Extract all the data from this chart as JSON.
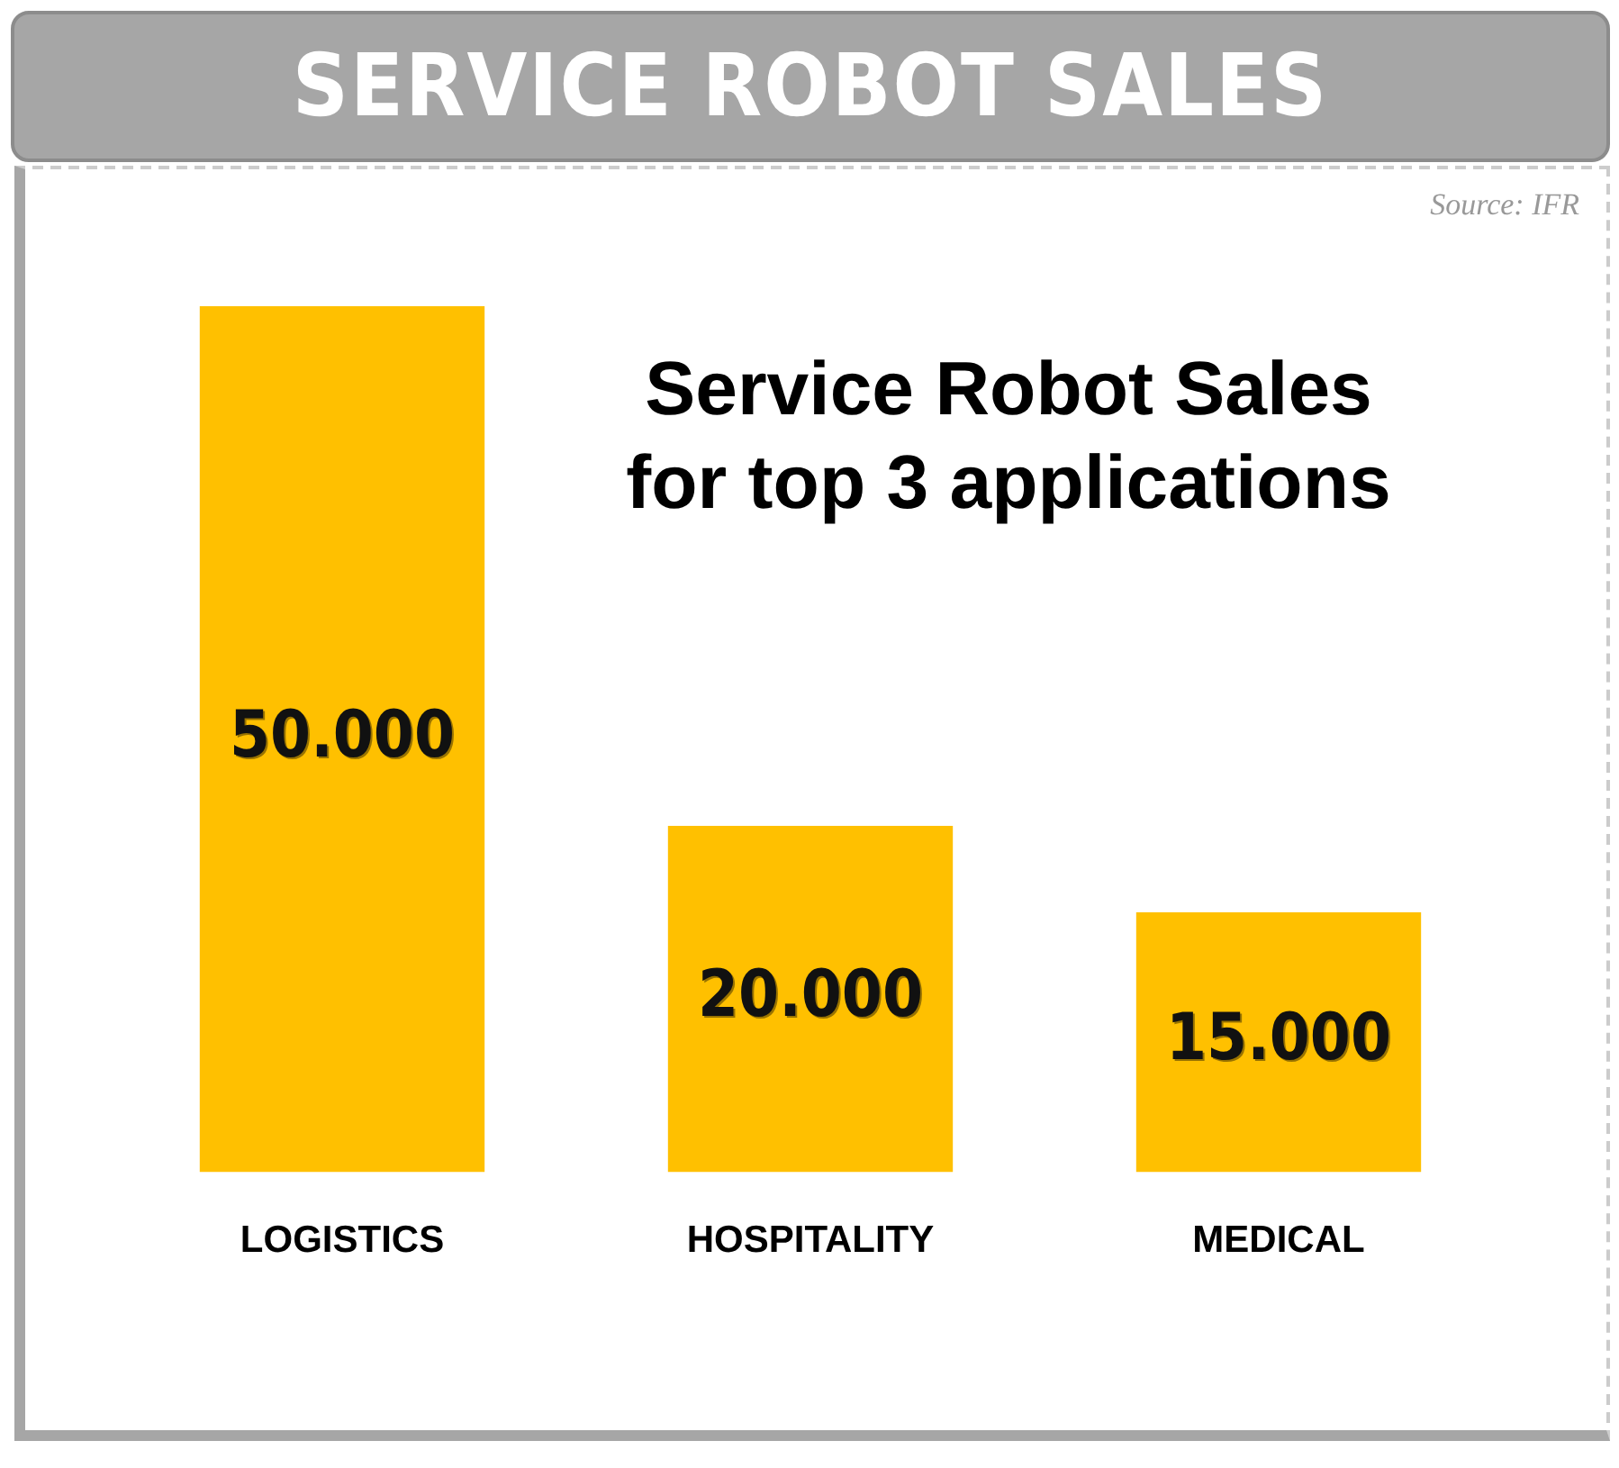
{
  "chart_data": {
    "type": "bar",
    "title": "SERVICE ROBOT SALES",
    "subtitle": "Service Robot Sales\nfor top 3 applications",
    "categories": [
      "LOGISTICS",
      "HOSPITALITY",
      "MEDICAL"
    ],
    "values": [
      50000,
      20000,
      15000
    ],
    "value_labels": [
      "50.000",
      "20.000",
      "15.000"
    ],
    "color": "#ffc000",
    "annotations": [
      "Source: IFR"
    ],
    "grid": false,
    "legend": false
  }
}
